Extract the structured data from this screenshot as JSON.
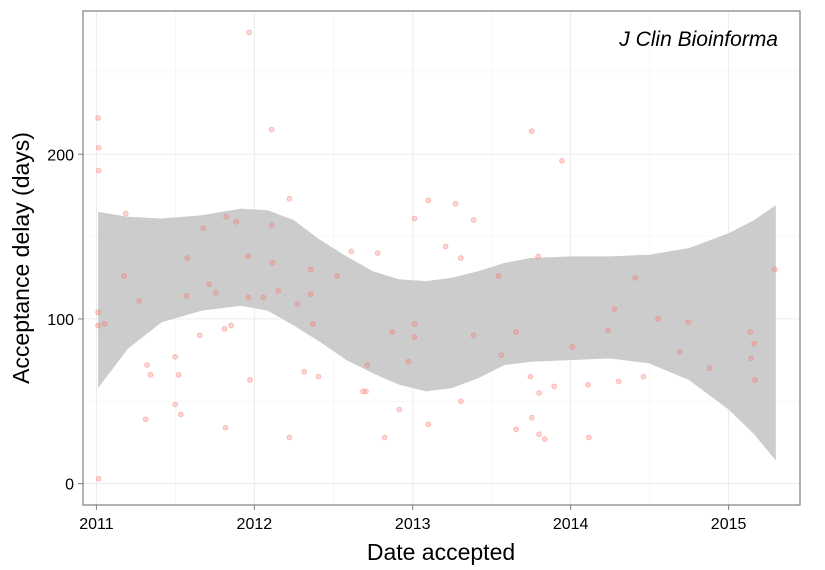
{
  "chart_data": {
    "type": "scatter",
    "xlabel": "Date accepted",
    "ylabel": "Acceptance delay (days)",
    "annotation": "J Clin Bioinforma",
    "xlim": [
      "2010-12-01",
      "2015-06-15"
    ],
    "ylim": [
      -13,
      287
    ],
    "x_ticks": [
      "2011-01-01",
      "2012-01-01",
      "2013-01-01",
      "2014-01-01",
      "2015-01-01"
    ],
    "x_tick_labels": [
      "2011",
      "2012",
      "2013",
      "2014",
      "2015"
    ],
    "y_ticks": [
      0,
      100,
      200
    ],
    "y_tick_labels": [
      "0",
      "100",
      "200"
    ],
    "grid": true,
    "colors": {
      "points": "#f8766d",
      "ribbon": "#cccccc",
      "panel_border": "#7f7f7f",
      "grid_major": "#ebebeb",
      "grid_minor": "#f5f5f5"
    },
    "points": [
      {
        "x": "2011-01-05",
        "y": 222
      },
      {
        "x": "2011-01-06",
        "y": 204
      },
      {
        "x": "2011-01-06",
        "y": 190
      },
      {
        "x": "2011-01-05",
        "y": 104
      },
      {
        "x": "2011-01-05",
        "y": 96
      },
      {
        "x": "2011-01-06",
        "y": 3
      },
      {
        "x": "2011-01-20",
        "y": 97
      },
      {
        "x": "2011-03-06",
        "y": 126
      },
      {
        "x": "2011-03-10",
        "y": 164
      },
      {
        "x": "2011-04-10",
        "y": 111
      },
      {
        "x": "2011-04-25",
        "y": 39
      },
      {
        "x": "2011-04-28",
        "y": 72
      },
      {
        "x": "2011-05-06",
        "y": 66
      },
      {
        "x": "2011-07-02",
        "y": 77
      },
      {
        "x": "2011-07-02",
        "y": 48
      },
      {
        "x": "2011-07-10",
        "y": 66
      },
      {
        "x": "2011-07-15",
        "y": 42
      },
      {
        "x": "2011-07-28",
        "y": 114
      },
      {
        "x": "2011-07-30",
        "y": 137
      },
      {
        "x": "2011-08-28",
        "y": 90
      },
      {
        "x": "2011-09-05",
        "y": 155
      },
      {
        "x": "2011-09-18",
        "y": 121
      },
      {
        "x": "2011-10-04",
        "y": 116
      },
      {
        "x": "2011-10-24",
        "y": 94
      },
      {
        "x": "2011-10-26",
        "y": 34
      },
      {
        "x": "2011-10-28",
        "y": 162
      },
      {
        "x": "2011-11-08",
        "y": 96
      },
      {
        "x": "2011-11-20",
        "y": 159
      },
      {
        "x": "2011-12-18",
        "y": 138
      },
      {
        "x": "2011-12-18",
        "y": 113
      },
      {
        "x": "2011-12-20",
        "y": 274
      },
      {
        "x": "2011-12-22",
        "y": 63
      },
      {
        "x": "2012-01-22",
        "y": 113
      },
      {
        "x": "2012-02-10",
        "y": 215
      },
      {
        "x": "2012-02-10",
        "y": 157
      },
      {
        "x": "2012-02-12",
        "y": 134
      },
      {
        "x": "2012-02-25",
        "y": 117
      },
      {
        "x": "2012-03-22",
        "y": 173
      },
      {
        "x": "2012-03-22",
        "y": 28
      },
      {
        "x": "2012-04-10",
        "y": 109
      },
      {
        "x": "2012-04-25",
        "y": 68
      },
      {
        "x": "2012-05-10",
        "y": 130
      },
      {
        "x": "2012-05-10",
        "y": 115
      },
      {
        "x": "2012-05-15",
        "y": 97
      },
      {
        "x": "2012-05-28",
        "y": 65
      },
      {
        "x": "2012-07-10",
        "y": 126
      },
      {
        "x": "2012-08-12",
        "y": 141
      },
      {
        "x": "2012-09-08",
        "y": 56
      },
      {
        "x": "2012-09-15",
        "y": 56
      },
      {
        "x": "2012-09-18",
        "y": 72
      },
      {
        "x": "2012-10-12",
        "y": 140
      },
      {
        "x": "2012-10-28",
        "y": 28
      },
      {
        "x": "2012-11-15",
        "y": 92
      },
      {
        "x": "2012-12-01",
        "y": 45
      },
      {
        "x": "2012-12-22",
        "y": 74
      },
      {
        "x": "2013-01-05",
        "y": 161
      },
      {
        "x": "2013-01-05",
        "y": 97
      },
      {
        "x": "2013-01-05",
        "y": 89
      },
      {
        "x": "2013-02-06",
        "y": 172
      },
      {
        "x": "2013-02-06",
        "y": 36
      },
      {
        "x": "2013-03-18",
        "y": 144
      },
      {
        "x": "2013-04-10",
        "y": 170
      },
      {
        "x": "2013-04-22",
        "y": 137
      },
      {
        "x": "2013-04-22",
        "y": 50
      },
      {
        "x": "2013-05-22",
        "y": 160
      },
      {
        "x": "2013-05-22",
        "y": 90
      },
      {
        "x": "2013-07-18",
        "y": 126
      },
      {
        "x": "2013-07-25",
        "y": 78
      },
      {
        "x": "2013-08-28",
        "y": 92
      },
      {
        "x": "2013-08-28",
        "y": 33
      },
      {
        "x": "2013-09-30",
        "y": 65
      },
      {
        "x": "2013-10-03",
        "y": 214
      },
      {
        "x": "2013-10-03",
        "y": 40
      },
      {
        "x": "2013-10-18",
        "y": 138
      },
      {
        "x": "2013-10-20",
        "y": 55
      },
      {
        "x": "2013-10-20",
        "y": 30
      },
      {
        "x": "2013-11-02",
        "y": 27
      },
      {
        "x": "2013-11-24",
        "y": 59
      },
      {
        "x": "2013-12-12",
        "y": 196
      },
      {
        "x": "2014-01-05",
        "y": 83
      },
      {
        "x": "2014-02-10",
        "y": 60
      },
      {
        "x": "2014-02-12",
        "y": 28
      },
      {
        "x": "2014-03-28",
        "y": 93
      },
      {
        "x": "2014-04-12",
        "y": 106
      },
      {
        "x": "2014-04-22",
        "y": 62
      },
      {
        "x": "2014-05-30",
        "y": 125
      },
      {
        "x": "2014-06-18",
        "y": 65
      },
      {
        "x": "2014-07-22",
        "y": 100
      },
      {
        "x": "2014-09-10",
        "y": 80
      },
      {
        "x": "2014-09-30",
        "y": 98
      },
      {
        "x": "2014-11-18",
        "y": 70
      },
      {
        "x": "2015-02-20",
        "y": 92
      },
      {
        "x": "2015-02-22",
        "y": 76
      },
      {
        "x": "2015-03-01",
        "y": 85
      },
      {
        "x": "2015-03-03",
        "y": 63
      },
      {
        "x": "2015-04-18",
        "y": 130
      }
    ],
    "smooth_band": [
      {
        "x": "2011-01-05",
        "lower": 58,
        "upper": 165
      },
      {
        "x": "2011-03-15",
        "lower": 82,
        "upper": 162
      },
      {
        "x": "2011-06-01",
        "lower": 98,
        "upper": 161
      },
      {
        "x": "2011-09-01",
        "lower": 105,
        "upper": 163
      },
      {
        "x": "2011-12-01",
        "lower": 108,
        "upper": 167
      },
      {
        "x": "2012-02-01",
        "lower": 105,
        "upper": 166
      },
      {
        "x": "2012-04-01",
        "lower": 96,
        "upper": 160
      },
      {
        "x": "2012-06-01",
        "lower": 86,
        "upper": 148
      },
      {
        "x": "2012-08-01",
        "lower": 75,
        "upper": 138
      },
      {
        "x": "2012-10-01",
        "lower": 67,
        "upper": 129
      },
      {
        "x": "2012-12-01",
        "lower": 60,
        "upper": 124
      },
      {
        "x": "2013-02-01",
        "lower": 56,
        "upper": 123
      },
      {
        "x": "2013-04-01",
        "lower": 58,
        "upper": 125
      },
      {
        "x": "2013-06-01",
        "lower": 64,
        "upper": 129
      },
      {
        "x": "2013-08-01",
        "lower": 72,
        "upper": 134
      },
      {
        "x": "2013-10-01",
        "lower": 74,
        "upper": 137
      },
      {
        "x": "2014-01-01",
        "lower": 75,
        "upper": 138
      },
      {
        "x": "2014-04-01",
        "lower": 76,
        "upper": 138
      },
      {
        "x": "2014-07-01",
        "lower": 73,
        "upper": 139
      },
      {
        "x": "2014-10-01",
        "lower": 63,
        "upper": 143
      },
      {
        "x": "2015-01-01",
        "lower": 45,
        "upper": 152
      },
      {
        "x": "2015-03-01",
        "lower": 30,
        "upper": 160
      },
      {
        "x": "2015-04-20",
        "lower": 14,
        "upper": 169
      }
    ]
  }
}
